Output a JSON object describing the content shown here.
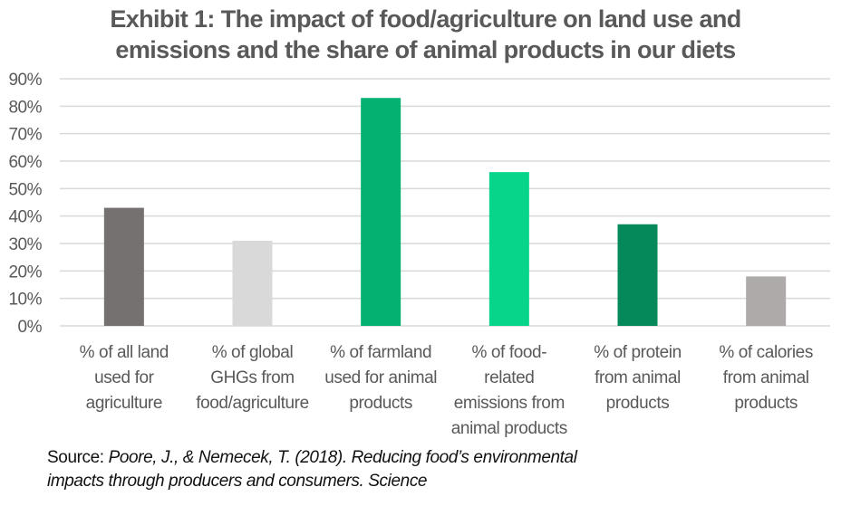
{
  "chart_data": {
    "type": "bar",
    "title": "Exhibit 1: The impact of food/agriculture on land use and emissions and the share of animal products in our diets",
    "title_lines": [
      "Exhibit 1: The impact of food/agriculture on land use and",
      "emissions and the share of animal products in our diets"
    ],
    "xlabel": "",
    "ylabel": "",
    "ylim": [
      0,
      90
    ],
    "yticks": [
      0,
      10,
      20,
      30,
      40,
      50,
      60,
      70,
      80,
      90
    ],
    "ytick_labels": [
      "0%",
      "10%",
      "20%",
      "30%",
      "40%",
      "50%",
      "60%",
      "70%",
      "80%",
      "90%"
    ],
    "grid": true,
    "legend": "none",
    "categories": [
      "% of all land used for agriculture",
      "% of global GHGs from food/agriculture",
      "% of farmland used for animal products",
      "% of food-related emissions from animal products",
      "% of protein from animal products",
      "% of calories from animal products"
    ],
    "category_lines": [
      [
        "% of all land",
        "used for",
        "agriculture"
      ],
      [
        "% of global",
        "GHGs from",
        "food/agriculture"
      ],
      [
        "% of farmland",
        "used for animal",
        "products"
      ],
      [
        "% of food-",
        "related",
        "emissions from",
        "animal products"
      ],
      [
        "% of protein",
        "from animal",
        "products"
      ],
      [
        "% of calories",
        "from animal",
        "products"
      ]
    ],
    "values": [
      43,
      31,
      83,
      56,
      37,
      18
    ],
    "unit": "%",
    "bar_colors": [
      "#767171",
      "#d9d9d9",
      "#05b171",
      "#07d68a",
      "#05895a",
      "#aeaaaa"
    ],
    "gridline_color": "#d9d9d9",
    "text_color": "#595959"
  },
  "source": {
    "prefix": "Source: ",
    "citation_line1": "Poore, J., & Nemecek, T. (2018). Reducing food’s environmental",
    "citation_line2": "impacts through producers and consumers. Science"
  }
}
